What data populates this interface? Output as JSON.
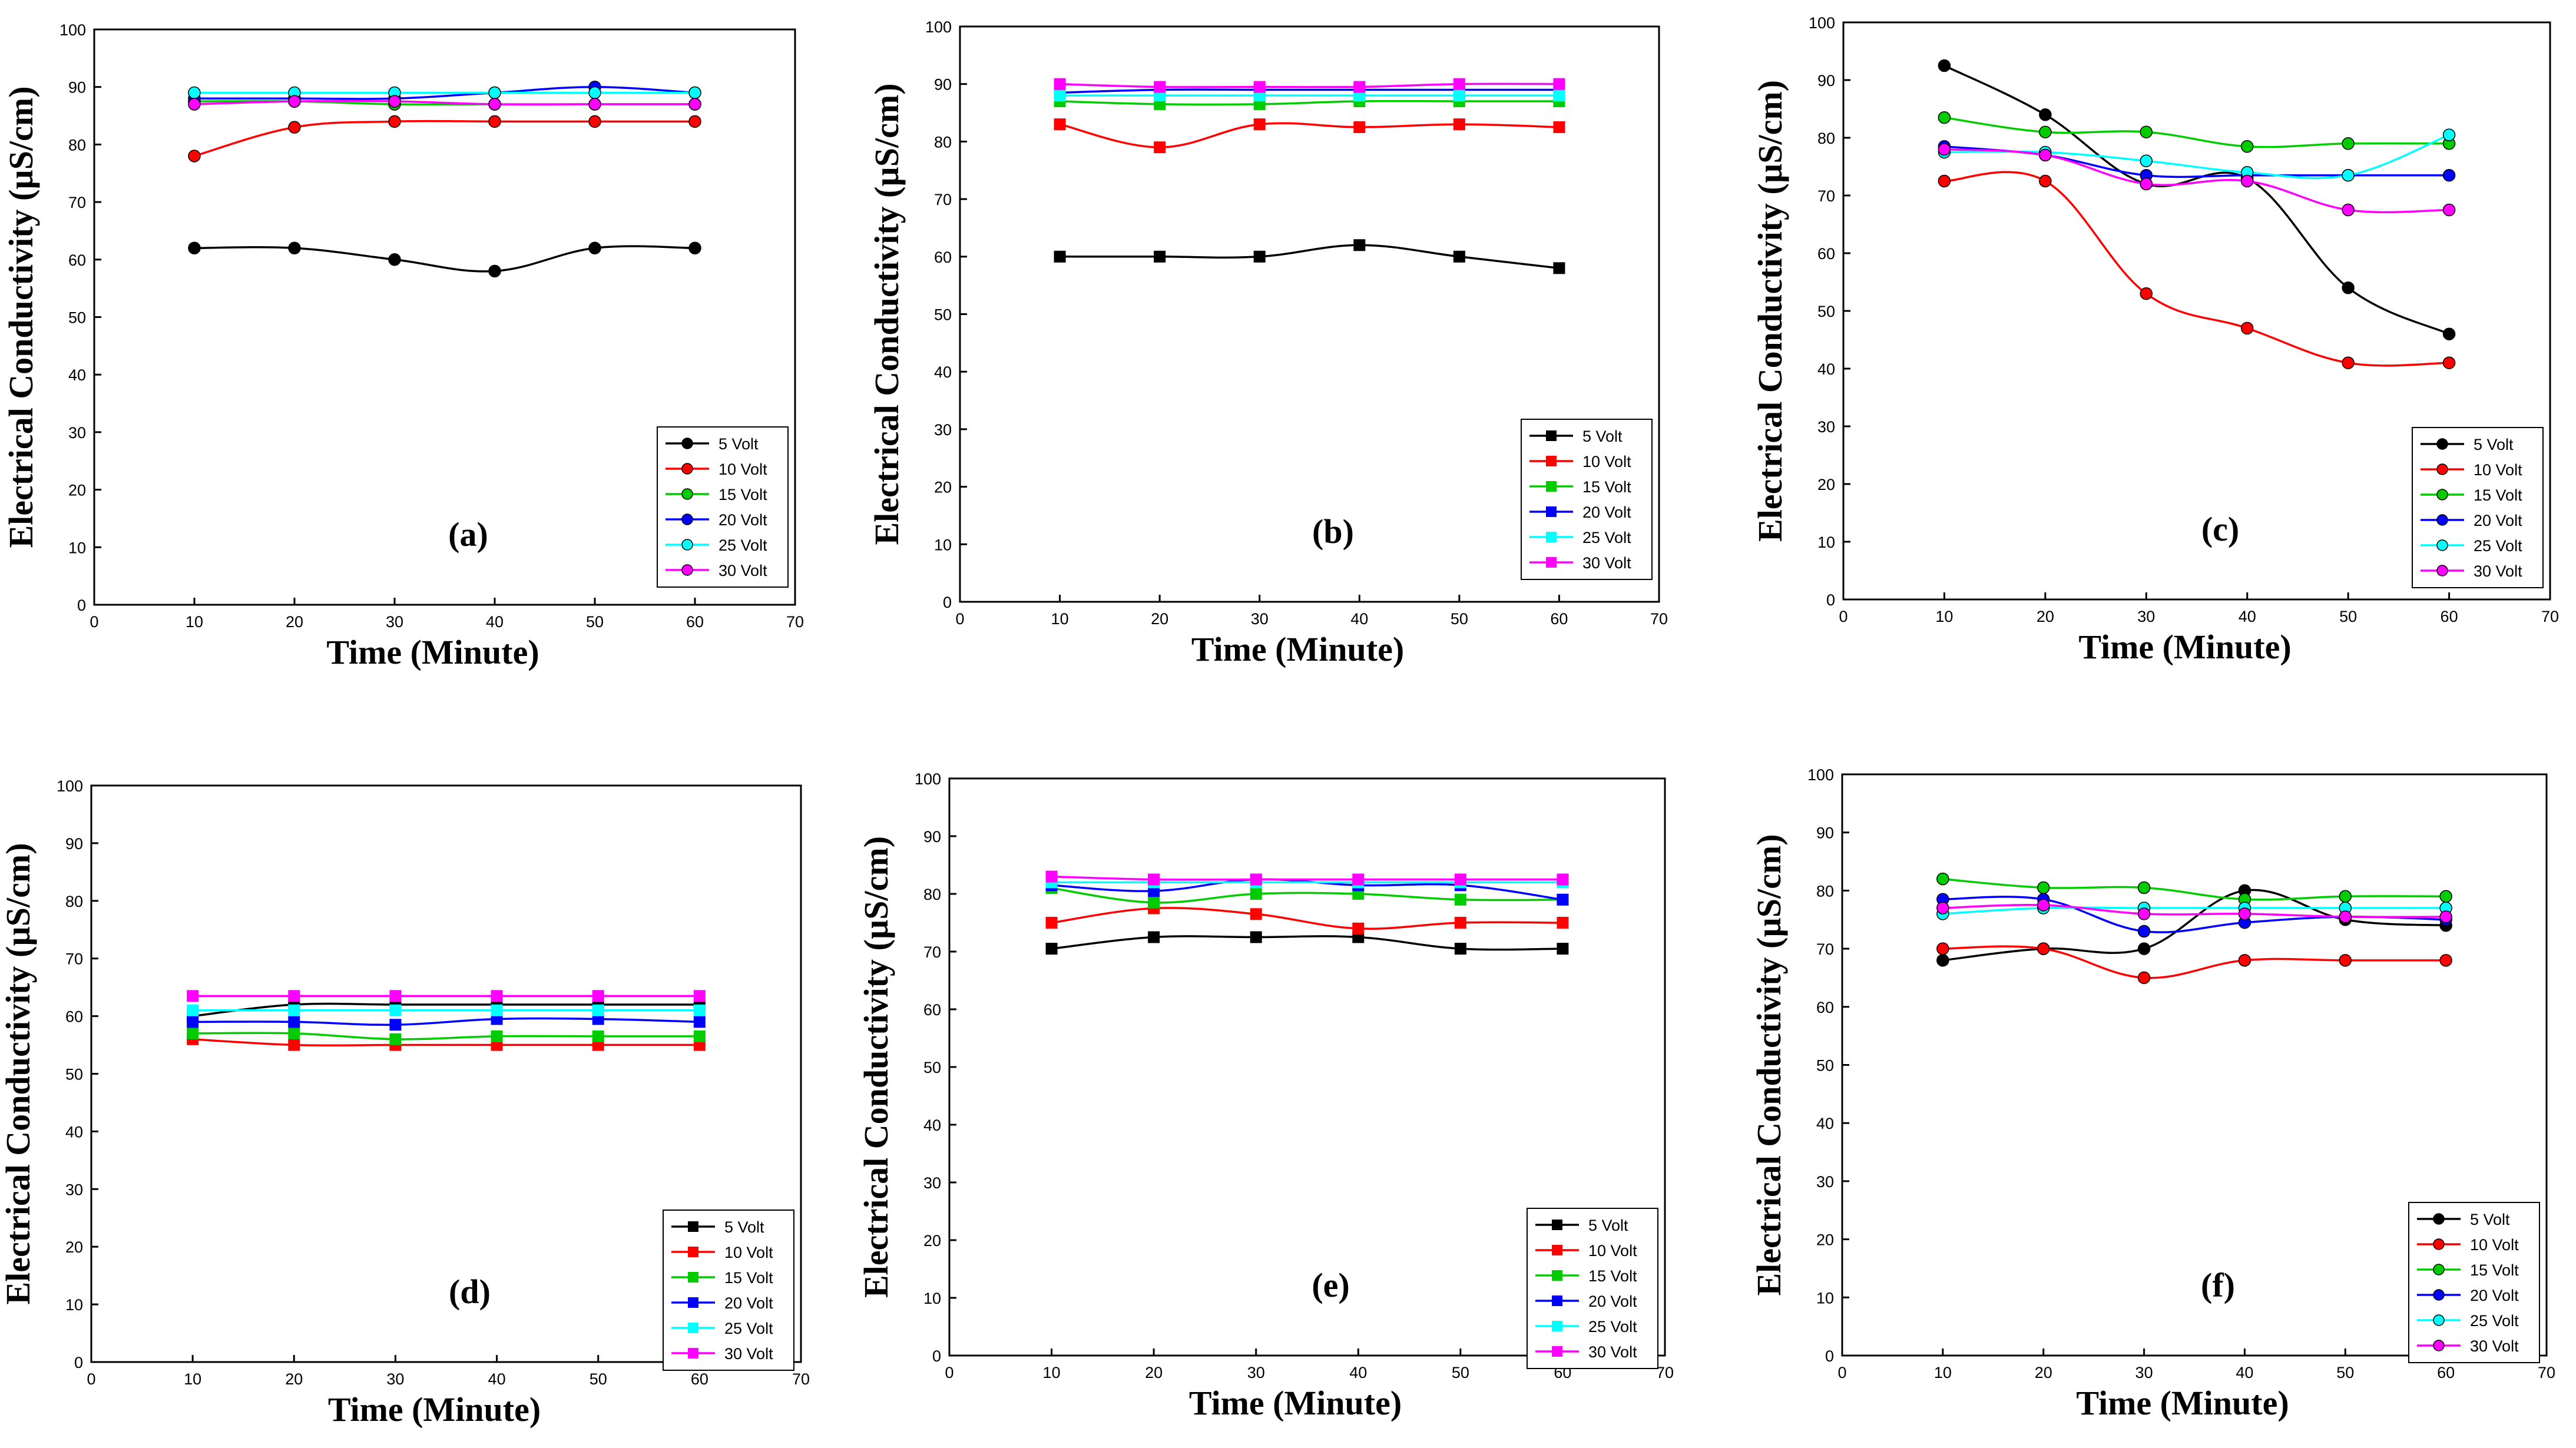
{
  "chart_data": [
    {
      "type": "line",
      "panel_label": "(a)",
      "marker": "circle",
      "smooth": true,
      "x": [
        10,
        20,
        30,
        40,
        50,
        60
      ],
      "xlabel": "Time (Minute)",
      "ylabel": "Electrical Conductivity (µS/cm)",
      "xlim": [
        0,
        70
      ],
      "ylim": [
        0,
        100
      ],
      "xticks": [
        0,
        10,
        20,
        30,
        40,
        50,
        60,
        70
      ],
      "yticks": [
        0,
        10,
        20,
        30,
        40,
        50,
        60,
        70,
        80,
        90,
        100
      ],
      "grid": false,
      "legend_position": "bottom-right",
      "series": [
        {
          "name": "5 Volt",
          "color": "#000000",
          "values": [
            62,
            62,
            60,
            58,
            62,
            62
          ]
        },
        {
          "name": "10 Volt",
          "color": "#ff0000",
          "values": [
            78,
            83,
            84,
            84,
            84,
            84
          ]
        },
        {
          "name": "15 Volt",
          "color": "#00cc00",
          "values": [
            87.5,
            87.5,
            87,
            87,
            87,
            87
          ]
        },
        {
          "name": "20 Volt",
          "color": "#0000ff",
          "values": [
            88,
            88,
            88,
            89,
            90,
            89
          ]
        },
        {
          "name": "25 Volt",
          "color": "#00ffff",
          "values": [
            89,
            89,
            89,
            89,
            89,
            89
          ]
        },
        {
          "name": "30 Volt",
          "color": "#ff00ff",
          "values": [
            87,
            87.5,
            87.5,
            87,
            87,
            87
          ]
        }
      ]
    },
    {
      "type": "line",
      "panel_label": "(b)",
      "marker": "square",
      "smooth": true,
      "x": [
        10,
        20,
        30,
        40,
        50,
        60
      ],
      "xlabel": "Time (Minute)",
      "ylabel": "Electrical Conductivity (µS/cm)",
      "xlim": [
        0,
        70
      ],
      "ylim": [
        0,
        100
      ],
      "xticks": [
        0,
        10,
        20,
        30,
        40,
        50,
        60,
        70
      ],
      "yticks": [
        0,
        10,
        20,
        30,
        40,
        50,
        60,
        70,
        80,
        90,
        100
      ],
      "grid": false,
      "legend_position": "bottom-right",
      "series": [
        {
          "name": "5 Volt",
          "color": "#000000",
          "values": [
            60,
            60,
            60,
            62,
            60,
            58
          ]
        },
        {
          "name": "10 Volt",
          "color": "#ff0000",
          "values": [
            83,
            79,
            83,
            82.5,
            83,
            82.5
          ]
        },
        {
          "name": "15 Volt",
          "color": "#00cc00",
          "values": [
            87,
            86.5,
            86.5,
            87,
            87,
            87
          ]
        },
        {
          "name": "20 Volt",
          "color": "#0000ff",
          "values": [
            88.5,
            89,
            89,
            89,
            89,
            89
          ]
        },
        {
          "name": "25 Volt",
          "color": "#00ffff",
          "values": [
            88,
            88,
            88,
            88,
            88,
            88
          ]
        },
        {
          "name": "30 Volt",
          "color": "#ff00ff",
          "values": [
            90,
            89.5,
            89.5,
            89.5,
            90,
            90
          ]
        }
      ]
    },
    {
      "type": "line",
      "panel_label": "(c)",
      "marker": "circle",
      "smooth": true,
      "x": [
        10,
        20,
        30,
        40,
        50,
        60
      ],
      "xlabel": "Time (Minute)",
      "ylabel": "Electrical Conductivity (µS/cm)",
      "xlim": [
        0,
        70
      ],
      "ylim": [
        0,
        100
      ],
      "xticks": [
        0,
        10,
        20,
        30,
        40,
        50,
        60,
        70
      ],
      "yticks": [
        0,
        10,
        20,
        30,
        40,
        50,
        60,
        70,
        80,
        90,
        100
      ],
      "grid": false,
      "legend_position": "bottom-right",
      "series": [
        {
          "name": "5 Volt",
          "color": "#000000",
          "values": [
            92.5,
            84,
            72,
            73,
            54,
            46
          ]
        },
        {
          "name": "10 Volt",
          "color": "#ff0000",
          "values": [
            72.5,
            72.5,
            53,
            47,
            41,
            41
          ]
        },
        {
          "name": "15 Volt",
          "color": "#00cc00",
          "values": [
            83.5,
            81,
            81,
            78.5,
            79,
            79
          ]
        },
        {
          "name": "20 Volt",
          "color": "#0000ff",
          "values": [
            78.5,
            77,
            73.5,
            73.5,
            73.5,
            73.5
          ]
        },
        {
          "name": "25 Volt",
          "color": "#00ffff",
          "values": [
            77.5,
            77.5,
            76,
            74,
            73.5,
            80.5
          ]
        },
        {
          "name": "30 Volt",
          "color": "#ff00ff",
          "values": [
            78,
            77,
            72,
            72.5,
            67.5,
            67.5
          ]
        }
      ]
    },
    {
      "type": "line",
      "panel_label": "(d)",
      "marker": "square",
      "smooth": true,
      "x": [
        10,
        20,
        30,
        40,
        50,
        60
      ],
      "xlabel": "Time (Minute)",
      "ylabel": "Electrical Conductivity (µS/cm)",
      "xlim": [
        0,
        70
      ],
      "ylim": [
        0,
        100
      ],
      "xticks": [
        0,
        10,
        20,
        30,
        40,
        50,
        60,
        70
      ],
      "yticks": [
        0,
        10,
        20,
        30,
        40,
        50,
        60,
        70,
        80,
        90,
        100
      ],
      "grid": false,
      "legend_position": "bottom-right",
      "series": [
        {
          "name": "5 Volt",
          "color": "#000000",
          "values": [
            60,
            62,
            62,
            62,
            62,
            62
          ]
        },
        {
          "name": "10 Volt",
          "color": "#ff0000",
          "values": [
            56,
            55,
            55,
            55,
            55,
            55
          ]
        },
        {
          "name": "15 Volt",
          "color": "#00cc00",
          "values": [
            57,
            57,
            56,
            56.5,
            56.5,
            56.5
          ]
        },
        {
          "name": "20 Volt",
          "color": "#0000ff",
          "values": [
            59,
            59,
            58.5,
            59.5,
            59.5,
            59
          ]
        },
        {
          "name": "25 Volt",
          "color": "#00ffff",
          "values": [
            61,
            61,
            61,
            61,
            61,
            61
          ]
        },
        {
          "name": "30 Volt",
          "color": "#ff00ff",
          "values": [
            63.5,
            63.5,
            63.5,
            63.5,
            63.5,
            63.5
          ]
        }
      ]
    },
    {
      "type": "line",
      "panel_label": "(e)",
      "marker": "square",
      "smooth": true,
      "x": [
        10,
        20,
        30,
        40,
        50,
        60
      ],
      "xlabel": "Time (Minute)",
      "ylabel": "Electrical Conductivity (µS/cm)",
      "xlim": [
        0,
        70
      ],
      "ylim": [
        0,
        100
      ],
      "xticks": [
        0,
        10,
        20,
        30,
        40,
        50,
        60,
        70
      ],
      "yticks": [
        0,
        10,
        20,
        30,
        40,
        50,
        60,
        70,
        80,
        90,
        100
      ],
      "grid": false,
      "legend_position": "bottom-right",
      "series": [
        {
          "name": "5 Volt",
          "color": "#000000",
          "values": [
            70.5,
            72.5,
            72.5,
            72.5,
            70.5,
            70.5
          ]
        },
        {
          "name": "10 Volt",
          "color": "#ff0000",
          "values": [
            75,
            77.5,
            76.5,
            74,
            75,
            75
          ]
        },
        {
          "name": "15 Volt",
          "color": "#00cc00",
          "values": [
            81,
            78.5,
            80,
            80,
            79,
            79
          ]
        },
        {
          "name": "20 Volt",
          "color": "#0000ff",
          "values": [
            81.5,
            80.5,
            82.5,
            81.5,
            81.5,
            79
          ]
        },
        {
          "name": "25 Volt",
          "color": "#00ffff",
          "values": [
            82,
            82,
            82,
            82,
            82,
            82
          ]
        },
        {
          "name": "30 Volt",
          "color": "#ff00ff",
          "values": [
            83,
            82.5,
            82.5,
            82.5,
            82.5,
            82.5
          ]
        }
      ]
    },
    {
      "type": "line",
      "panel_label": "(f)",
      "marker": "circle",
      "smooth": true,
      "x": [
        10,
        20,
        30,
        40,
        50,
        60
      ],
      "xlabel": "Time (Minute)",
      "ylabel": "Electrical Conductivity (µS/cm)",
      "xlim": [
        0,
        70
      ],
      "ylim": [
        0,
        100
      ],
      "xticks": [
        0,
        10,
        20,
        30,
        40,
        50,
        60,
        70
      ],
      "yticks": [
        0,
        10,
        20,
        30,
        40,
        50,
        60,
        70,
        80,
        90,
        100
      ],
      "grid": false,
      "legend_position": "bottom-right",
      "series": [
        {
          "name": "5 Volt",
          "color": "#000000",
          "values": [
            68,
            70,
            70,
            80,
            75,
            74
          ]
        },
        {
          "name": "10 Volt",
          "color": "#ff0000",
          "values": [
            70,
            70,
            65,
            68,
            68,
            68
          ]
        },
        {
          "name": "15 Volt",
          "color": "#00cc00",
          "values": [
            82,
            80.5,
            80.5,
            78.5,
            79,
            79
          ]
        },
        {
          "name": "20 Volt",
          "color": "#0000ff",
          "values": [
            78.5,
            78.5,
            73,
            74.5,
            75.5,
            75
          ]
        },
        {
          "name": "25 Volt",
          "color": "#00ffff",
          "values": [
            76,
            77,
            77,
            77,
            77,
            77
          ]
        },
        {
          "name": "30 Volt",
          "color": "#ff00ff",
          "values": [
            77,
            77.5,
            76,
            76,
            75.5,
            75.5
          ]
        }
      ]
    }
  ]
}
